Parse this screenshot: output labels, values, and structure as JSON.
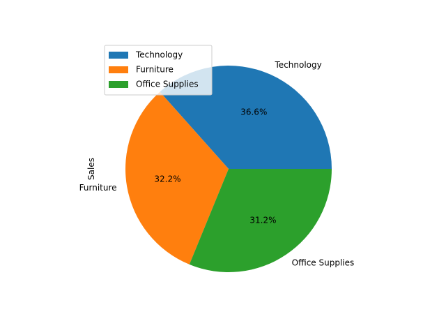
{
  "chart_data": {
    "type": "pie",
    "title": "",
    "ylabel": "Sales",
    "categories": [
      "Technology",
      "Furniture",
      "Office Supplies"
    ],
    "values": [
      36.6,
      32.2,
      31.2
    ],
    "percent_labels": [
      "36.6%",
      "32.2%",
      "31.2%"
    ],
    "colors": [
      "#1f77b4",
      "#ff7f0e",
      "#2ca02c"
    ],
    "start_angle_deg": 0,
    "direction": "counterclockwise",
    "legend": {
      "placement": "upper-left",
      "entries": [
        "Technology",
        "Furniture",
        "Office Supplies"
      ]
    }
  }
}
